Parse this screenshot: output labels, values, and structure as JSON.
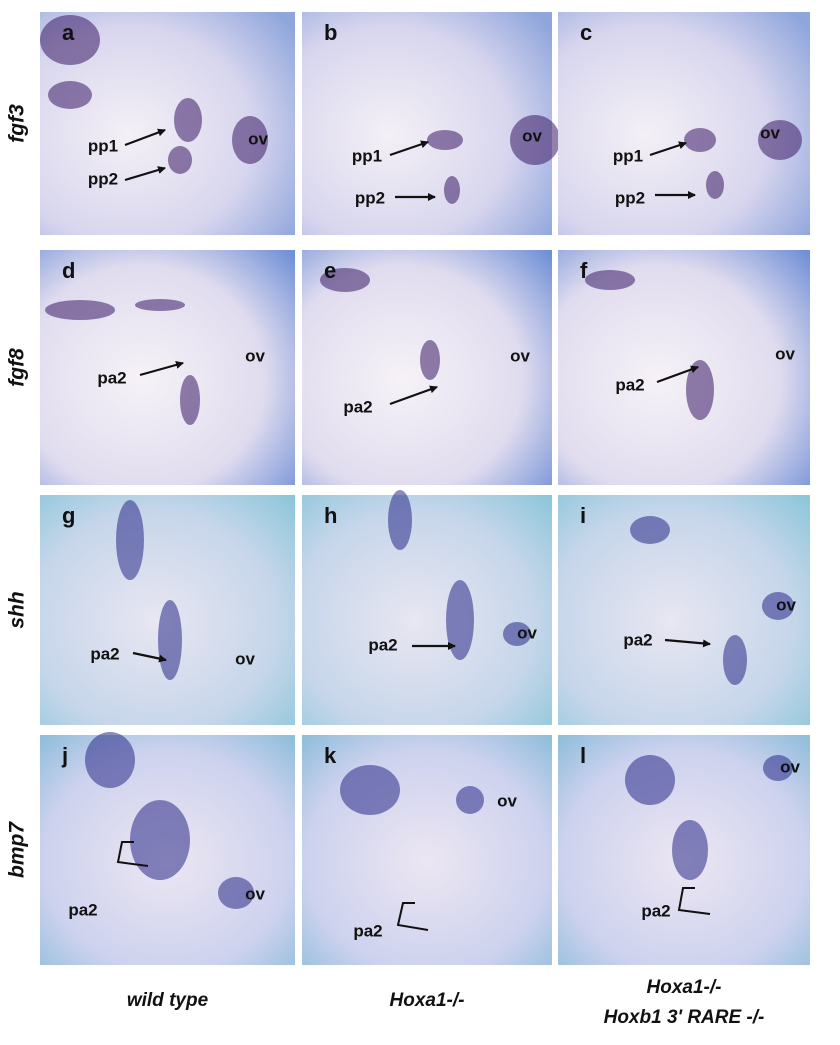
{
  "row_labels": [
    "fgf3",
    "fgf8",
    "shh",
    "bmp7"
  ],
  "column_labels": [
    [
      "wild type"
    ],
    [
      "Hoxa1-/-"
    ],
    [
      "Hoxa1-/-",
      "Hoxb1 3' RARE -/-"
    ]
  ],
  "panels": [
    {
      "letter": "a",
      "labels": [
        "pp1",
        "pp2",
        "ov"
      ]
    },
    {
      "letter": "b",
      "labels": [
        "pp1",
        "ov",
        "pp2"
      ]
    },
    {
      "letter": "c",
      "labels": [
        "ov",
        "pp1",
        "pp2"
      ]
    },
    {
      "letter": "d",
      "labels": [
        "pa2",
        "ov"
      ]
    },
    {
      "letter": "e",
      "labels": [
        "ov",
        "pa2"
      ]
    },
    {
      "letter": "f",
      "labels": [
        "ov",
        "pa2"
      ]
    },
    {
      "letter": "g",
      "labels": [
        "pa2",
        "ov"
      ]
    },
    {
      "letter": "h",
      "labels": [
        "ov",
        "pa2"
      ]
    },
    {
      "letter": "i",
      "labels": [
        "ov",
        "pa2"
      ]
    },
    {
      "letter": "j",
      "labels": [
        "ov",
        "pa2"
      ]
    },
    {
      "letter": "k",
      "labels": [
        "ov",
        "pa2"
      ]
    },
    {
      "letter": "l",
      "labels": [
        "ov",
        "pa2"
      ]
    }
  ]
}
